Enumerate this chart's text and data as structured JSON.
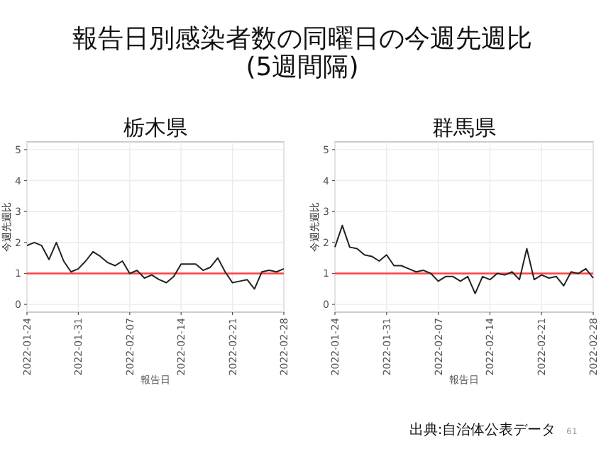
{
  "chart_data": [
    {
      "type": "line",
      "title": "報告日別感染者数の同曜日の今週先週比\n(5週間隔)",
      "subtitle": "栃木県",
      "xlabel": "報告日",
      "ylabel": "今週先週比",
      "x": [
        "2022-01-24",
        "2022-01-25",
        "2022-01-26",
        "2022-01-27",
        "2022-01-28",
        "2022-01-29",
        "2022-01-30",
        "2022-01-31",
        "2022-02-01",
        "2022-02-02",
        "2022-02-03",
        "2022-02-04",
        "2022-02-05",
        "2022-02-06",
        "2022-02-07",
        "2022-02-08",
        "2022-02-09",
        "2022-02-10",
        "2022-02-11",
        "2022-02-12",
        "2022-02-13",
        "2022-02-14",
        "2022-02-15",
        "2022-02-16",
        "2022-02-17",
        "2022-02-18",
        "2022-02-19",
        "2022-02-20",
        "2022-02-21",
        "2022-02-22",
        "2022-02-23",
        "2022-02-24",
        "2022-02-25",
        "2022-02-26",
        "2022-02-27",
        "2022-02-28"
      ],
      "series": [
        {
          "color": "#222222",
          "values": [
            1.9,
            2.0,
            1.9,
            1.45,
            2.0,
            1.4,
            1.05,
            1.15,
            1.4,
            1.7,
            1.55,
            1.35,
            1.25,
            1.4,
            1.0,
            1.1,
            0.85,
            0.95,
            0.8,
            0.7,
            0.9,
            1.3,
            1.3,
            1.3,
            1.1,
            1.2,
            1.5,
            1.05,
            0.7,
            0.75,
            0.8,
            0.5,
            1.05,
            1.1,
            1.05,
            1.15
          ]
        }
      ],
      "xlim": [
        "2022-01-24",
        "2022-02-28"
      ],
      "xticks": [
        "2022-01-24",
        "2022-01-31",
        "2022-02-07",
        "2022-02-14",
        "2022-02-21",
        "2022-02-28"
      ],
      "ylim": [
        -0.25,
        5.25
      ],
      "yticks": [
        0,
        1,
        2,
        3,
        4,
        5
      ],
      "grid": true,
      "ref_lines": [
        {
          "axis": "y",
          "value": 1,
          "color": "#ff4040"
        }
      ]
    },
    {
      "type": "line",
      "subtitle": "群馬県",
      "xlabel": "報告日",
      "ylabel": "今週先週比",
      "x": [
        "2022-01-24",
        "2022-01-25",
        "2022-01-26",
        "2022-01-27",
        "2022-01-28",
        "2022-01-29",
        "2022-01-30",
        "2022-01-31",
        "2022-02-01",
        "2022-02-02",
        "2022-02-03",
        "2022-02-04",
        "2022-02-05",
        "2022-02-06",
        "2022-02-07",
        "2022-02-08",
        "2022-02-09",
        "2022-02-10",
        "2022-02-11",
        "2022-02-12",
        "2022-02-13",
        "2022-02-14",
        "2022-02-15",
        "2022-02-16",
        "2022-02-17",
        "2022-02-18",
        "2022-02-19",
        "2022-02-20",
        "2022-02-21",
        "2022-02-22",
        "2022-02-23",
        "2022-02-24",
        "2022-02-25",
        "2022-02-26",
        "2022-02-27",
        "2022-02-28"
      ],
      "series": [
        {
          "color": "#222222",
          "values": [
            1.85,
            2.55,
            1.85,
            1.8,
            1.6,
            1.55,
            1.4,
            1.6,
            1.25,
            1.25,
            1.15,
            1.05,
            1.1,
            1.0,
            0.75,
            0.9,
            0.9,
            0.75,
            0.9,
            0.35,
            0.9,
            0.8,
            1.0,
            0.95,
            1.05,
            0.8,
            1.8,
            0.8,
            0.95,
            0.85,
            0.9,
            0.6,
            1.05,
            1.0,
            1.15,
            0.85
          ]
        }
      ],
      "xlim": [
        "2022-01-24",
        "2022-02-28"
      ],
      "xticks": [
        "2022-01-24",
        "2022-01-31",
        "2022-02-07",
        "2022-02-14",
        "2022-02-21",
        "2022-02-28"
      ],
      "ylim": [
        -0.25,
        5.25
      ],
      "yticks": [
        0,
        1,
        2,
        3,
        4,
        5
      ],
      "grid": true,
      "ref_lines": [
        {
          "axis": "y",
          "value": 1,
          "color": "#ff4040"
        }
      ],
      "annotations": [
        "出典:自治体公表データ",
        "61"
      ]
    }
  ]
}
